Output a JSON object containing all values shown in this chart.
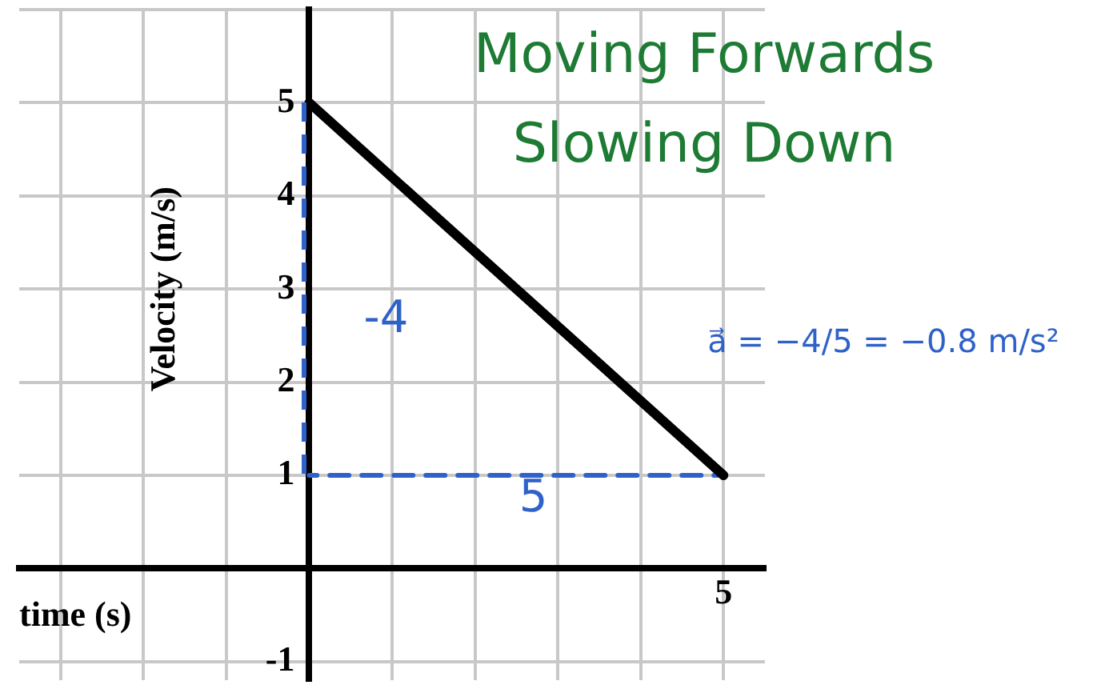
{
  "chart_data": {
    "type": "line",
    "xlabel": "time (s)",
    "ylabel": "Velocity (m/s)",
    "categories": [
      null,
      null,
      null,
      null,
      null,
      null,
      null,
      null,
      "5"
    ],
    "series": [
      {
        "color": "#000000",
        "values": [
          null,
          null,
          null,
          5,
          null,
          null,
          null,
          null,
          1
        ]
      },
      {
        "color": "#2f62c9",
        "values": [
          null,
          null,
          null,
          1,
          null,
          null,
          null,
          null,
          1
        ],
        "line_style": "dashed"
      }
    ],
    "ylim": [
      -1.2,
      6
    ],
    "yticks": [
      {
        "value": -1,
        "label": "-1"
      },
      {
        "value": 0,
        "label": null
      },
      {
        "value": 1,
        "label": "1"
      },
      {
        "value": 2,
        "label": "2"
      },
      {
        "value": 3,
        "label": "3"
      },
      {
        "value": 4,
        "label": "4"
      },
      {
        "value": 5,
        "label": "5"
      },
      {
        "value": 6,
        "label": null
      }
    ],
    "grid": true,
    "marker": "none",
    "legend": false,
    "annotations": [
      "Moving Forwards",
      "Slowing Down",
      "a⃗ = −4/5 = −0.8 m/s²",
      "-4",
      "5"
    ]
  }
}
